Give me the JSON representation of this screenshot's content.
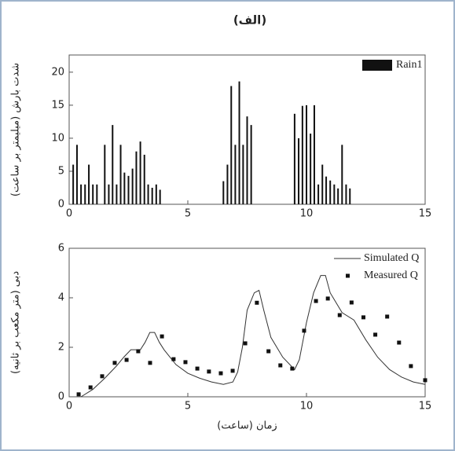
{
  "chart_data": [
    {
      "type": "bar",
      "title": "(الف)",
      "ylabel": "شدت بارش (میلیمتر بر ساعت)",
      "x": [
        0.17,
        0.33,
        0.5,
        0.67,
        0.83,
        1.0,
        1.17,
        1.5,
        1.67,
        1.83,
        2.0,
        2.17,
        2.33,
        2.5,
        2.67,
        2.83,
        3.0,
        3.17,
        3.33,
        3.5,
        3.67,
        3.83,
        6.5,
        6.67,
        6.83,
        7.0,
        7.17,
        7.33,
        7.5,
        7.67,
        9.5,
        9.67,
        9.83,
        10.0,
        10.17,
        10.33,
        10.5,
        10.67,
        10.83,
        11.0,
        11.17,
        11.33,
        11.5,
        11.67,
        11.83
      ],
      "series": [
        {
          "name": "Rain1",
          "color": "#111111",
          "values": [
            6,
            9,
            3,
            3,
            6,
            3,
            3,
            9,
            3,
            12,
            3,
            9,
            4.8,
            4.3,
            5.4,
            8,
            9.5,
            7.5,
            3,
            2.5,
            3,
            2.2,
            3.5,
            6,
            17.9,
            9,
            18.6,
            9,
            13.3,
            12,
            13.7,
            10,
            14.9,
            15,
            10.7,
            15,
            3,
            6,
            4.2,
            3.6,
            3,
            2.4,
            9,
            3,
            2.4
          ]
        }
      ],
      "xlim": [
        0,
        15
      ],
      "xticks": [
        0,
        5,
        10,
        15
      ],
      "ylim": [
        0,
        22.6
      ],
      "yticks": [
        0,
        5,
        10,
        15,
        20
      ],
      "legend": "upper right"
    },
    {
      "type": "line",
      "ylabel": "دبی (متر مکعب بر ثانیه)",
      "xlabel": "زمان (ساعت)",
      "series": [
        {
          "name": "Simulated Q",
          "color": "#333333",
          "style": "line",
          "x": [
            0.5,
            1,
            1.5,
            2,
            2.3,
            2.6,
            3.0,
            3.2,
            3.4,
            3.6,
            3.8,
            4.0,
            4.5,
            5,
            5.5,
            6,
            6.5,
            6.9,
            7.1,
            7.3,
            7.5,
            7.8,
            8.0,
            8.2,
            8.5,
            9.0,
            9.5,
            9.7,
            10.0,
            10.3,
            10.6,
            10.8,
            11.0,
            11.5,
            12.0,
            12.5,
            13,
            13.5,
            14,
            14.5,
            15
          ],
          "values": [
            0,
            0.3,
            0.75,
            1.25,
            1.6,
            1.9,
            1.9,
            2.2,
            2.6,
            2.6,
            2.2,
            1.9,
            1.3,
            0.95,
            0.75,
            0.6,
            0.5,
            0.6,
            1.0,
            2.0,
            3.5,
            4.2,
            4.3,
            3.5,
            2.4,
            1.6,
            1.1,
            1.5,
            3.0,
            4.2,
            4.9,
            4.9,
            4.2,
            3.4,
            3.1,
            2.3,
            1.6,
            1.1,
            0.8,
            0.6,
            0.5
          ]
        },
        {
          "name": "Measured Q",
          "color": "#111111",
          "style": "markers",
          "x": [
            0.4,
            0.9,
            1.39,
            1.92,
            2.42,
            2.91,
            3.41,
            3.91,
            4.4,
            4.9,
            5.4,
            5.89,
            6.39,
            6.89,
            7.42,
            7.91,
            8.4,
            8.9,
            9.4,
            9.9,
            10.4,
            10.9,
            11.4,
            11.9,
            12.4,
            12.9,
            13.4,
            13.9,
            14.4,
            15
          ],
          "values": [
            0.1,
            0.38,
            0.83,
            1.37,
            1.49,
            1.84,
            1.37,
            2.44,
            1.52,
            1.4,
            1.14,
            1.02,
            0.95,
            1.05,
            2.16,
            3.8,
            1.84,
            1.27,
            1.14,
            2.67,
            3.87,
            3.97,
            3.3,
            3.81,
            3.21,
            2.51,
            3.24,
            2.19,
            1.24,
            0.67
          ]
        }
      ],
      "xlim": [
        0,
        15
      ],
      "xticks": [
        0,
        5,
        10,
        15
      ],
      "ylim": [
        0,
        6
      ],
      "yticks": [
        0,
        2,
        4,
        6
      ],
      "legend": "upper right"
    }
  ]
}
